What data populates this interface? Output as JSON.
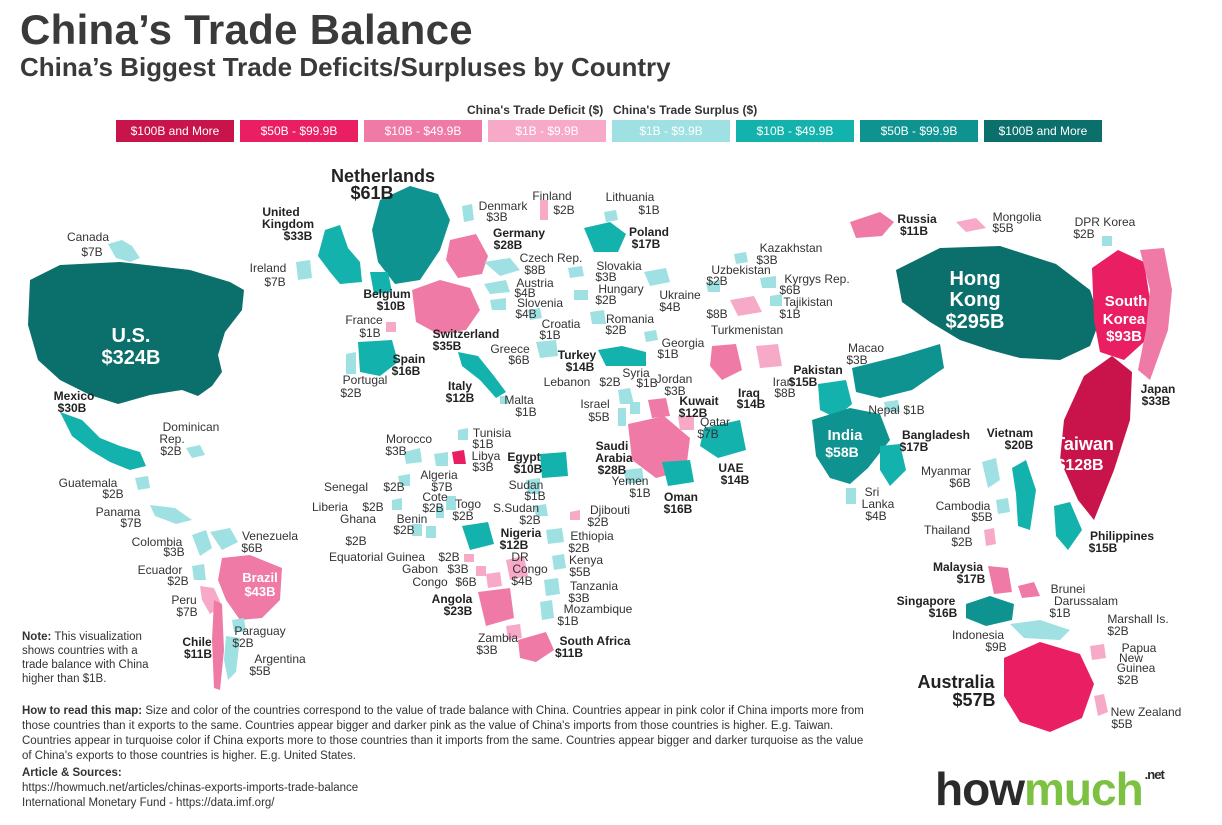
{
  "title": "China’s Trade Balance",
  "subtitle": "China’s Biggest Trade Deficits/Surpluses by Country",
  "legend": {
    "deficit_label": "China's Trade Deficit ($)",
    "surplus_label": "China's Trade Surplus ($)",
    "items": [
      {
        "label": "$100B and More",
        "color": "#c8144a"
      },
      {
        "label": "$50B - $99.9B",
        "color": "#ea1e63"
      },
      {
        "label": "$10B - $49.9B",
        "color": "#f07aa6"
      },
      {
        "label": "$1B - $9.9B",
        "color": "#f7aac8"
      },
      {
        "label": "$1B - $9.9B",
        "color": "#9fe0e2"
      },
      {
        "label": "$10B - $49.9B",
        "color": "#14b2ad"
      },
      {
        "label": "$50B - $99.9B",
        "color": "#0e9390"
      },
      {
        "label": "$100B and More",
        "color": "#0b6f6c"
      }
    ]
  },
  "countries": {
    "us": {
      "name": "U.S.",
      "value": "$324B"
    },
    "hongkong": {
      "name1": "Hong",
      "name2": "Kong",
      "value": "$295B"
    },
    "taiwan": {
      "name": "Taiwan",
      "value": "$128B"
    },
    "southkorea": {
      "name1": "South",
      "name2": "Korea",
      "value": "$93B"
    },
    "netherlands": {
      "name": "Netherlands",
      "value": "$61B"
    },
    "india": {
      "name": "India",
      "value": "$58B"
    },
    "australia": {
      "name": "Australia",
      "value": "$57B"
    },
    "brazil": {
      "name": "Brazil",
      "value": "$43B"
    },
    "others": [
      {
        "name": "Canada",
        "value": "$7B"
      },
      {
        "name": "United",
        "name2": "Kingdom",
        "value": "$33B"
      },
      {
        "name": "Ireland",
        "value": "$7B"
      },
      {
        "name": "Belgium",
        "value": "$10B"
      },
      {
        "name": "France",
        "value": "$1B"
      },
      {
        "name": "Switzerland",
        "value": "$35B"
      },
      {
        "name": "Spain",
        "value": "$16B"
      },
      {
        "name": "Portugal",
        "value": "$2B"
      },
      {
        "name": "Italy",
        "value": "$12B"
      },
      {
        "name": "Malta",
        "value": "$1B"
      },
      {
        "name": "Denmark",
        "value": "$3B"
      },
      {
        "name": "Finland",
        "value": "$2B"
      },
      {
        "name": "Lithuania",
        "value": "$1B"
      },
      {
        "name": "Germany",
        "value": "$28B"
      },
      {
        "name": "Poland",
        "value": "$17B"
      },
      {
        "name": "Czech Rep.",
        "value": "$8B"
      },
      {
        "name": "Slovakia",
        "value": "$3B"
      },
      {
        "name": "Austria",
        "value": "$4B"
      },
      {
        "name": "Hungary",
        "value": "$2B"
      },
      {
        "name": "Ukraine",
        "value": "$4B"
      },
      {
        "name": "Slovenia",
        "value": "$4B"
      },
      {
        "name": "Croatia",
        "value": "$1B"
      },
      {
        "name": "Romania",
        "value": "$2B"
      },
      {
        "name": "Greece",
        "value": "$6B"
      },
      {
        "name": "Georgia",
        "value": "$1B"
      },
      {
        "name": "Turkey",
        "value": "$14B"
      },
      {
        "name": "Lebanon",
        "value": "$2B"
      },
      {
        "name": "Syria",
        "value": "$1B"
      },
      {
        "name": "Jordan",
        "value": "$3B"
      },
      {
        "name": "Israel",
        "value": "$5B"
      },
      {
        "name": "Kuwait",
        "value": "$12B"
      },
      {
        "name": "Iraq",
        "value": "$14B"
      },
      {
        "name": "Iran",
        "value": "$8B"
      },
      {
        "name": "Qatar",
        "value": "$7B"
      },
      {
        "name": "Saudi",
        "name2": "Arabia",
        "value": "$28B"
      },
      {
        "name": "UAE",
        "value": "$14B"
      },
      {
        "name": "Yemen",
        "value": "$1B"
      },
      {
        "name": "Oman",
        "value": "$16B"
      },
      {
        "name": "Kazakhstan",
        "value": "$3B"
      },
      {
        "name": "Uzbekistan",
        "value": "$2B"
      },
      {
        "name": "Kyrgys Rep.",
        "value": "$6B"
      },
      {
        "name": "Tajikistan",
        "value": "$1B"
      },
      {
        "name": "Turkmenistan",
        "value": "$8B"
      },
      {
        "name": "Russia",
        "value": "$11B"
      },
      {
        "name": "Mongolia",
        "value": "$5B"
      },
      {
        "name": "DPR Korea",
        "value": "$2B"
      },
      {
        "name": "Macao",
        "value": "$3B"
      },
      {
        "name": "Pakistan",
        "value": "$15B"
      },
      {
        "name": "Nepal",
        "value": "$1B"
      },
      {
        "name": "Bangladesh",
        "value": "$17B"
      },
      {
        "name": "Vietnam",
        "value": "$20B"
      },
      {
        "name": "Japan",
        "value": "$33B"
      },
      {
        "name": "Myanmar",
        "value": "$6B"
      },
      {
        "name": "Sri",
        "name2": "Lanka",
        "value": "$4B"
      },
      {
        "name": "Cambodia",
        "value": "$5B"
      },
      {
        "name": "Thailand",
        "value": "$2B"
      },
      {
        "name": "Philippines",
        "value": "$15B"
      },
      {
        "name": "Malaysia",
        "value": "$17B"
      },
      {
        "name": "Brunei",
        "name2": "Darussalam",
        "value": "$1B"
      },
      {
        "name": "Singapore",
        "value": "$16B"
      },
      {
        "name": "Indonesia",
        "value": "$9B"
      },
      {
        "name": "Marshall Is.",
        "value": "$2B"
      },
      {
        "name": "Papua",
        "name2": "New",
        "name3": "Guinea",
        "value": "$2B"
      },
      {
        "name": "New Zealand",
        "value": "$5B"
      },
      {
        "name": "Mexico",
        "value": "$30B"
      },
      {
        "name": "Dominican",
        "name2": "Rep.",
        "value": "$2B"
      },
      {
        "name": "Guatemala",
        "value": "$2B"
      },
      {
        "name": "Panama",
        "value": "$7B"
      },
      {
        "name": "Colombia",
        "value": "$3B"
      },
      {
        "name": "Venezuela",
        "value": "$6B"
      },
      {
        "name": "Ecuador",
        "value": "$2B"
      },
      {
        "name": "Peru",
        "value": "$7B"
      },
      {
        "name": "Chile",
        "value": "$11B"
      },
      {
        "name": "Paraguay",
        "value": "$2B"
      },
      {
        "name": "Argentina",
        "value": "$5B"
      },
      {
        "name": "Morocco",
        "value": "$3B"
      },
      {
        "name": "Tunisia",
        "value": "$1B"
      },
      {
        "name": "Libya",
        "value": "$3B"
      },
      {
        "name": "Egypt",
        "value": "$10B"
      },
      {
        "name": "Algeria",
        "value": "$7B"
      },
      {
        "name": "Senegal",
        "value": "$2B"
      },
      {
        "name": "Liberia",
        "value": "$2B"
      },
      {
        "name": "Cote",
        "name2": "d'Ivoire",
        "value": "$2B"
      },
      {
        "name": "Togo",
        "value": "$2B"
      },
      {
        "name": "Benin",
        "value": "$2B"
      },
      {
        "name": "Ghana",
        "value": "$2B"
      },
      {
        "name": "Sudan",
        "value": "$1B"
      },
      {
        "name": "S.Sudan",
        "value": "$2B"
      },
      {
        "name": "Djibouti",
        "value": "$2B"
      },
      {
        "name": "Nigeria",
        "value": "$12B"
      },
      {
        "name": "Ethiopia",
        "value": "$2B"
      },
      {
        "name": "Equatorial Guinea",
        "value": "$2B"
      },
      {
        "name": "Gabon",
        "value": "$3B"
      },
      {
        "name": "Congo",
        "value": "$6B"
      },
      {
        "name": "DR",
        "name2": "Congo",
        "value": "$4B"
      },
      {
        "name": "Kenya",
        "value": "$5B"
      },
      {
        "name": "Tanzania",
        "value": "$3B"
      },
      {
        "name": "Angola",
        "value": "$23B"
      },
      {
        "name": "Mozambique",
        "value": "$1B"
      },
      {
        "name": "Zambia",
        "value": "$3B"
      },
      {
        "name": "South Africa",
        "value": "$11B"
      }
    ]
  },
  "note": {
    "label": "Note:",
    "text": "This visualization shows countries with a trade balance with China higher than $1B."
  },
  "howto": {
    "label": "How to read this map:",
    "text": "Size and color of the countries correspond to the value of trade balance with China. Countries appear in pink color if China imports more from those countries than it exports to the same. Countries appear bigger and darker pink as the value of China's imports from those countries is higher. E.g. Taiwan. Countries appear in turquoise color if China exports more to those countries than it imports from the same. Countries appear bigger and darker turquoise as the value of China's exports to those countries is higher. E.g. United States."
  },
  "sources": {
    "label": "Article & Sources:",
    "line1": "https://howmuch.net/articles/chinas-exports-imports-trade-balance",
    "line2": "International Monetary Fund - https://data.imf.org/"
  },
  "logo": {
    "how": "how",
    "much": "much",
    "net": ".net"
  }
}
